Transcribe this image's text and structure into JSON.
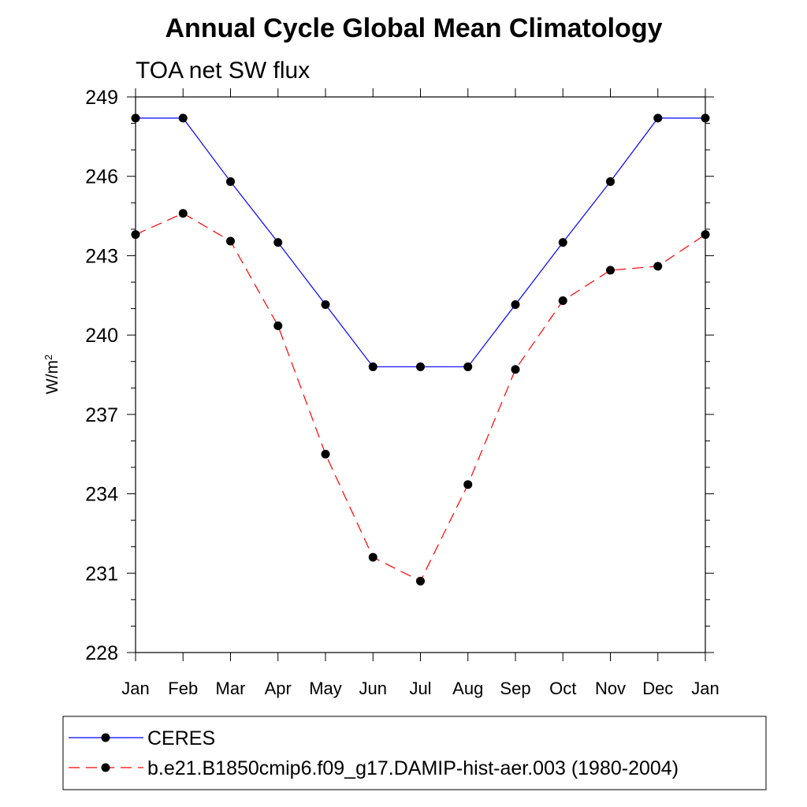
{
  "chart_data": {
    "type": "line",
    "title": "Annual Cycle Global Mean Climatology",
    "subtitle": "TOA net SW flux",
    "ylabel": "W/m",
    "ylabel_sup": "2",
    "ylim": [
      228,
      249
    ],
    "yticks": [
      "228",
      "231",
      "234",
      "237",
      "240",
      "243",
      "246",
      "249"
    ],
    "categories": [
      "Jan",
      "Feb",
      "Mar",
      "Apr",
      "May",
      "Jun",
      "Jul",
      "Aug",
      "Sep",
      "Oct",
      "Nov",
      "Dec",
      "Jan"
    ],
    "series": [
      {
        "name": "CERES",
        "color": "#0000ff",
        "line_style": "solid",
        "values": [
          248.2,
          248.2,
          245.8,
          243.5,
          241.15,
          238.8,
          238.8,
          238.8,
          241.15,
          243.5,
          245.8,
          248.2,
          248.2
        ]
      },
      {
        "name": "b.e21.B1850cmip6.f09_g17.DAMIP-hist-aer.003 (1980-2004)",
        "color": "#ff0000",
        "line_style": "dashed",
        "values": [
          243.8,
          244.6,
          243.55,
          240.35,
          235.5,
          231.6,
          230.7,
          234.35,
          238.7,
          241.3,
          242.45,
          242.6,
          243.8
        ]
      }
    ],
    "legend_position": "bottom",
    "grid": false
  }
}
